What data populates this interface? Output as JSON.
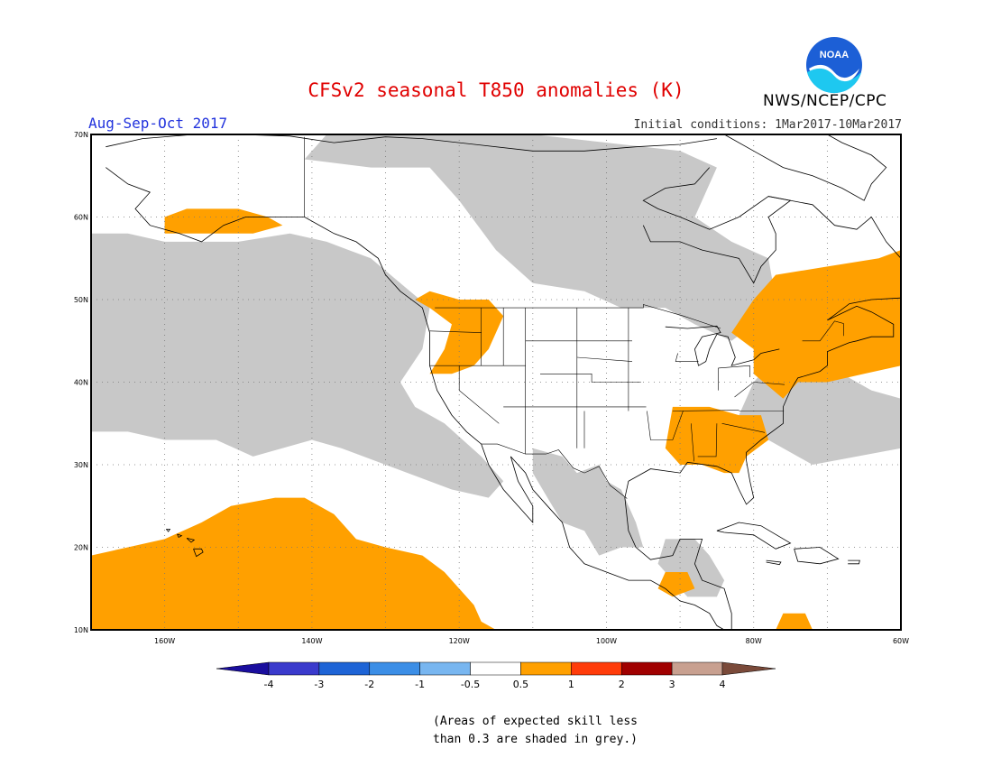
{
  "title": "CFSv2 seasonal T850 anomalies (K)",
  "organization": "NWS/NCEP/CPC",
  "logo_text": "NOAA",
  "season": "Aug-Sep-Oct 2017",
  "initial_conditions": "Initial conditions: 1Mar2017-10Mar2017",
  "footnote_line1": "(Areas of expected skill less",
  "footnote_line2": "than 0.3 are shaded in grey.)",
  "map": {
    "lon_range": [
      -170,
      -60
    ],
    "lat_range": [
      10,
      70
    ],
    "lat_ticks": [
      "10N",
      "20N",
      "30N",
      "40N",
      "50N",
      "60N",
      "70N"
    ],
    "lon_ticks": [
      "160W",
      "140W",
      "120W",
      "100W",
      "80W",
      "60W"
    ],
    "colors": {
      "frame": "#000000",
      "grid": "#888888",
      "coast": "#000000",
      "grey_mask": "#c8c8c8",
      "warm_anomaly": "#ffa000"
    }
  },
  "colorbar": {
    "labels": [
      "-4",
      "-3",
      "-2",
      "-1",
      "-0.5",
      "0.5",
      "1",
      "2",
      "3",
      "4"
    ],
    "colors": [
      "#1a0e9e",
      "#3a3acc",
      "#1e64d6",
      "#3c8ee6",
      "#78b6f0",
      "#ffffff",
      "#ffa000",
      "#ff3c0a",
      "#a00000",
      "#c8a090",
      "#7a4a3a"
    ]
  },
  "grey_regions": [
    [
      [
        -170,
        58
      ],
      [
        -165,
        58
      ],
      [
        -160,
        57
      ],
      [
        -150,
        57
      ],
      [
        -143,
        58
      ],
      [
        -138,
        57
      ],
      [
        -132,
        55
      ],
      [
        -128,
        52
      ],
      [
        -124,
        49
      ],
      [
        -125,
        44
      ],
      [
        -128,
        40
      ],
      [
        -126,
        37
      ],
      [
        -122,
        35
      ],
      [
        -117,
        31
      ],
      [
        -114,
        28
      ],
      [
        -116,
        26
      ],
      [
        -121,
        27
      ],
      [
        -130,
        30
      ],
      [
        -136,
        32
      ],
      [
        -140,
        33
      ],
      [
        -148,
        31
      ],
      [
        -153,
        33
      ],
      [
        -160,
        33
      ],
      [
        -165,
        34
      ],
      [
        -170,
        34
      ]
    ],
    [
      [
        -141,
        67
      ],
      [
        -138,
        70
      ],
      [
        -125,
        70
      ],
      [
        -110,
        70
      ],
      [
        -100,
        69
      ],
      [
        -90,
        68
      ],
      [
        -85,
        66
      ],
      [
        -88,
        60
      ],
      [
        -83,
        57
      ],
      [
        -78,
        55
      ],
      [
        -77,
        50
      ],
      [
        -80,
        47
      ],
      [
        -83,
        45
      ],
      [
        -88,
        47
      ],
      [
        -92,
        49
      ],
      [
        -98,
        49
      ],
      [
        -103,
        51
      ],
      [
        -110,
        52
      ],
      [
        -115,
        56
      ],
      [
        -120,
        62
      ],
      [
        -124,
        66
      ],
      [
        -132,
        66
      ]
    ],
    [
      [
        -110,
        32
      ],
      [
        -106,
        31
      ],
      [
        -104,
        29
      ],
      [
        -101,
        30
      ],
      [
        -100,
        28
      ],
      [
        -98,
        27
      ],
      [
        -96,
        23
      ],
      [
        -95,
        20
      ],
      [
        -98,
        20
      ],
      [
        -101,
        19
      ],
      [
        -103,
        22
      ],
      [
        -106,
        23
      ],
      [
        -108,
        26
      ],
      [
        -110,
        29
      ]
    ],
    [
      [
        -76,
        44
      ],
      [
        -72,
        41
      ],
      [
        -68,
        41
      ],
      [
        -64,
        39
      ],
      [
        -60,
        38
      ],
      [
        -60,
        32
      ],
      [
        -66,
        31
      ],
      [
        -72,
        30
      ],
      [
        -76,
        32
      ],
      [
        -80,
        34
      ],
      [
        -82,
        36
      ],
      [
        -80,
        40
      ]
    ],
    [
      [
        -92,
        21
      ],
      [
        -88,
        21
      ],
      [
        -86,
        19
      ],
      [
        -84,
        16
      ],
      [
        -85,
        14
      ],
      [
        -89,
        14
      ],
      [
        -91,
        16
      ],
      [
        -93,
        18
      ]
    ]
  ],
  "orange_regions": [
    [
      [
        -160,
        60
      ],
      [
        -157,
        61
      ],
      [
        -150,
        61
      ],
      [
        -146,
        60
      ],
      [
        -144,
        59
      ],
      [
        -148,
        58
      ],
      [
        -155,
        58
      ],
      [
        -160,
        58
      ]
    ],
    [
      [
        -126,
        50
      ],
      [
        -124,
        51
      ],
      [
        -120,
        50
      ],
      [
        -116,
        50
      ],
      [
        -114,
        48
      ],
      [
        -115,
        46
      ],
      [
        -116,
        44
      ],
      [
        -118,
        42
      ],
      [
        -121,
        41
      ],
      [
        -124,
        41
      ],
      [
        -122,
        44
      ],
      [
        -121,
        47
      ],
      [
        -124,
        49
      ]
    ],
    [
      [
        -80,
        50
      ],
      [
        -77,
        53
      ],
      [
        -70,
        54
      ],
      [
        -63,
        55
      ],
      [
        -60,
        56
      ],
      [
        -60,
        42
      ],
      [
        -65,
        41
      ],
      [
        -70,
        40
      ],
      [
        -74,
        40
      ],
      [
        -76,
        38
      ],
      [
        -80,
        41
      ],
      [
        -80,
        44
      ],
      [
        -83,
        46
      ]
    ],
    [
      [
        -91,
        37
      ],
      [
        -86,
        37
      ],
      [
        -82,
        36
      ],
      [
        -79,
        36
      ],
      [
        -78,
        33
      ],
      [
        -81,
        31
      ],
      [
        -82,
        29
      ],
      [
        -84,
        29
      ],
      [
        -87,
        30
      ],
      [
        -90,
        30
      ],
      [
        -92,
        32
      ]
    ],
    [
      [
        -170,
        19
      ],
      [
        -165,
        20
      ],
      [
        -160,
        21
      ],
      [
        -155,
        23
      ],
      [
        -151,
        25
      ],
      [
        -145,
        26
      ],
      [
        -141,
        26
      ],
      [
        -137,
        24
      ],
      [
        -134,
        21
      ],
      [
        -130,
        20
      ],
      [
        -125,
        19
      ],
      [
        -122,
        17
      ],
      [
        -120,
        15
      ],
      [
        -118,
        13
      ],
      [
        -117,
        11
      ],
      [
        -115,
        10
      ],
      [
        -170,
        10
      ]
    ],
    [
      [
        -92,
        17
      ],
      [
        -89,
        17
      ],
      [
        -88,
        15
      ],
      [
        -91,
        14
      ],
      [
        -93,
        15
      ]
    ],
    [
      [
        -76,
        12
      ],
      [
        -73,
        12
      ],
      [
        -72,
        10
      ],
      [
        -77,
        10
      ]
    ]
  ]
}
